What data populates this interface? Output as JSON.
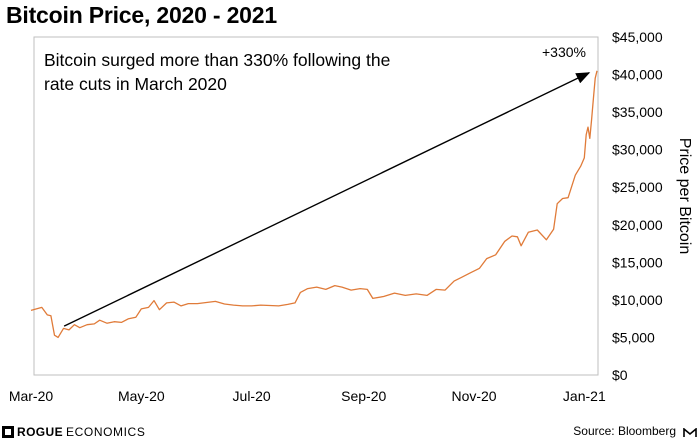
{
  "title": "Bitcoin Price, 2020 - 2021",
  "annotation": "Bitcoin surged more than 330% following the rate cuts in March 2020",
  "arrow_label": "+330%",
  "footer": {
    "brand_bold": "ROGUE",
    "brand_light": "ECONOMICS",
    "source": "Source: Bloomberg"
  },
  "colors": {
    "line": "#e07b39",
    "arrow": "#000000",
    "frame": "#bfbfbf"
  },
  "chart_data": {
    "type": "line",
    "title": "Bitcoin Price, 2020 - 2021",
    "xlabel": "",
    "ylabel": "Price per Bitcoin",
    "ylim": [
      0,
      45000
    ],
    "xlim": [
      "2020-03-01",
      "2021-01-08"
    ],
    "y_ticks": [
      0,
      5000,
      10000,
      15000,
      20000,
      25000,
      30000,
      35000,
      40000,
      45000
    ],
    "y_tick_labels": [
      "$0",
      "$5,000",
      "$10,000",
      "$15,000",
      "$20,000",
      "$25,000",
      "$30,000",
      "$35,000",
      "$40,000",
      "$45,000"
    ],
    "x_ticks": [
      "2020-03-01",
      "2020-05-01",
      "2020-07-01",
      "2020-09-01",
      "2020-11-01",
      "2021-01-01"
    ],
    "x_tick_labels": [
      "Mar-20",
      "May-20",
      "Jul-20",
      "Sep-20",
      "Nov-20",
      "Jan-21"
    ],
    "grid": false,
    "legend": "none",
    "x": [
      "2020-03-01",
      "2020-03-04",
      "2020-03-07",
      "2020-03-10",
      "2020-03-12",
      "2020-03-14",
      "2020-03-16",
      "2020-03-19",
      "2020-03-22",
      "2020-03-25",
      "2020-03-28",
      "2020-04-01",
      "2020-04-05",
      "2020-04-08",
      "2020-04-12",
      "2020-04-16",
      "2020-04-20",
      "2020-04-24",
      "2020-04-28",
      "2020-05-01",
      "2020-05-05",
      "2020-05-08",
      "2020-05-11",
      "2020-05-15",
      "2020-05-19",
      "2020-05-23",
      "2020-05-27",
      "2020-06-01",
      "2020-06-06",
      "2020-06-11",
      "2020-06-16",
      "2020-06-21",
      "2020-06-26",
      "2020-07-01",
      "2020-07-06",
      "2020-07-11",
      "2020-07-16",
      "2020-07-21",
      "2020-07-25",
      "2020-07-28",
      "2020-08-01",
      "2020-08-06",
      "2020-08-11",
      "2020-08-16",
      "2020-08-20",
      "2020-08-25",
      "2020-08-30",
      "2020-09-03",
      "2020-09-06",
      "2020-09-12",
      "2020-09-18",
      "2020-09-24",
      "2020-09-30",
      "2020-10-06",
      "2020-10-11",
      "2020-10-16",
      "2020-10-21",
      "2020-10-25",
      "2020-10-30",
      "2020-11-04",
      "2020-11-08",
      "2020-11-13",
      "2020-11-18",
      "2020-11-22",
      "2020-11-25",
      "2020-11-27",
      "2020-12-01",
      "2020-12-06",
      "2020-12-11",
      "2020-12-15",
      "2020-12-17",
      "2020-12-20",
      "2020-12-23",
      "2020-12-27",
      "2020-12-30",
      "2021-01-01",
      "2021-01-02",
      "2021-01-03",
      "2021-01-04",
      "2021-01-05",
      "2021-01-06",
      "2021-01-07",
      "2021-01-08"
    ],
    "series": [
      {
        "values": [
          8600,
          8800,
          9000,
          8000,
          7900,
          5300,
          5000,
          6200,
          6000,
          6700,
          6300,
          6700,
          6800,
          7300,
          6900,
          7100,
          7000,
          7500,
          7700,
          8800,
          9000,
          9900,
          8700,
          9600,
          9700,
          9200,
          9500,
          9500,
          9650,
          9800,
          9450,
          9300,
          9200,
          9200,
          9300,
          9250,
          9200,
          9400,
          9600,
          11000,
          11500,
          11700,
          11400,
          11900,
          11700,
          11300,
          11500,
          11400,
          10200,
          10450,
          10900,
          10600,
          10800,
          10600,
          11400,
          11300,
          12500,
          13000,
          13600,
          14200,
          15500,
          16000,
          17800,
          18500,
          18400,
          17200,
          19000,
          19300,
          18000,
          19400,
          22800,
          23500,
          23600,
          26600,
          27800,
          28900,
          32000,
          33000,
          31500,
          34000,
          36800,
          39500,
          40500
        ]
      }
    ]
  }
}
